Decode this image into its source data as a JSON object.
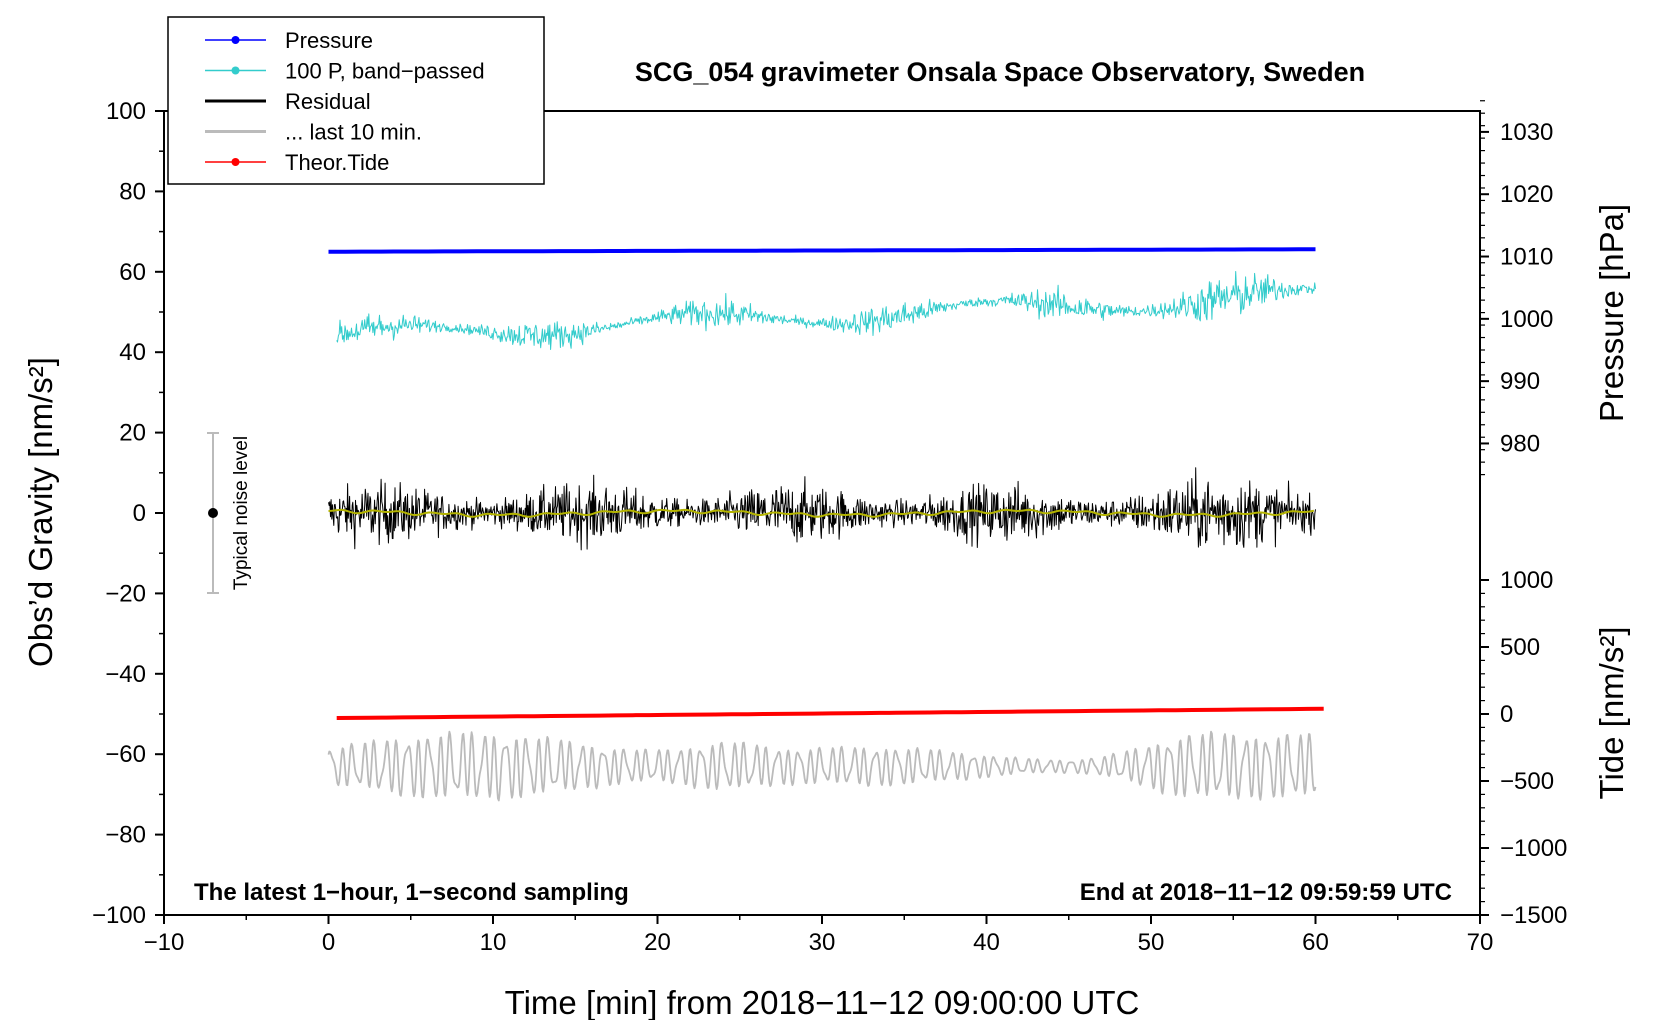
{
  "chart_data": {
    "type": "line",
    "title": "SCG_054 gravimeter Onsala Space Observatory, Sweden",
    "xlabel": "Time [min] from 2018−11−12 09:00:00 UTC",
    "ylabel_left": "Obs’d Gravity [nm/s²]",
    "ylabel_right_top": "Pressure [hPa]",
    "ylabel_right_bottom": "Tide [nm/s²]",
    "xlim": [
      -10,
      70
    ],
    "ylim_left": [
      -100,
      100
    ],
    "xticks": [
      "−10",
      "0",
      "10",
      "20",
      "30",
      "40",
      "50",
      "60",
      "70"
    ],
    "yticks_left": [
      "100",
      "80",
      "60",
      "40",
      "20",
      "0",
      "−20",
      "−40",
      "−60",
      "−80",
      "−100"
    ],
    "yticks_pressure": [
      "1030",
      "1020",
      "1010",
      "1000",
      "990",
      "980"
    ],
    "yticks_tide": [
      "1000",
      "500",
      "0",
      "−500",
      "−1000",
      "−1500"
    ],
    "annotation_left": "The latest 1−hour, 1−second sampling",
    "annotation_right": "End at 2018−11−12 09:59:59 UTC",
    "noise_label": "Typical noise level",
    "noise_bar": {
      "x": -7,
      "center": 0,
      "low": -20,
      "high": 20
    },
    "legend": [
      {
        "label": "Pressure",
        "color": "#0000ff",
        "marker": true
      },
      {
        "label": "100 P, band−passed",
        "color": "#33cccc",
        "marker": true
      },
      {
        "label": "Residual",
        "color": "#000000",
        "marker": false
      },
      {
        "label": "... last 10 min.",
        "color": "#bbbbbb",
        "marker": false
      },
      {
        "label": "Theor.Tide",
        "color": "#ff0000",
        "marker": true
      }
    ],
    "series": [
      {
        "name": "Pressure",
        "color": "#0000ff",
        "x_range": [
          0,
          60
        ],
        "start": 65.0,
        "end": 65.6,
        "offset": 0
      },
      {
        "name": "100 P, band−passed",
        "color": "#33cccc",
        "x_range": [
          0.5,
          60
        ],
        "start": 44,
        "end": 54,
        "amplitude": 6
      },
      {
        "name": "Residual",
        "color": "#000000",
        "x_range": [
          0,
          60
        ],
        "center": 0,
        "amplitude": 9
      },
      {
        "name": "Residual smoothed",
        "color": "#b3b300",
        "x_range": [
          0,
          60
        ],
        "center": 0.5,
        "amplitude": 1
      },
      {
        "name": "... last 10 min.",
        "color": "#bbbbbb",
        "x_range": [
          0,
          60
        ],
        "center": -63,
        "amplitude": 9
      },
      {
        "name": "Theor.Tide",
        "color": "#ff0000",
        "x_range": [
          0.5,
          60.5
        ],
        "start": -51,
        "end": -48.7
      }
    ]
  }
}
